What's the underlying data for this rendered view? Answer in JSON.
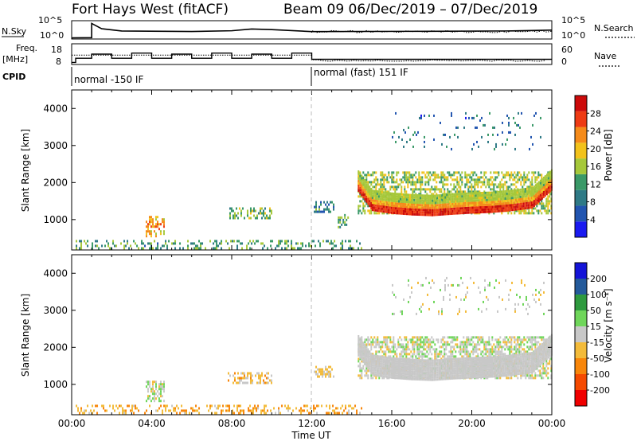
{
  "header": {
    "station": "Fort Hays West (fitACF)",
    "beam_info": "Beam 09  06/Dec/2019 – 07/Dec/2019"
  },
  "noise_panel": {
    "left_label": "N.Sky",
    "right_label": "N.Search",
    "left_ticks": [
      "10^5",
      "10^0"
    ],
    "right_ticks": [
      "10^5",
      "10^0"
    ]
  },
  "freq_panel": {
    "left_label_1": "Freq.",
    "left_label_2": "[MHz]",
    "right_label": "Nave",
    "left_ticks": [
      "18",
      "8"
    ],
    "right_ticks": [
      "60",
      "0"
    ]
  },
  "cpid": {
    "label": "CPID",
    "segments": [
      "normal -150 IF",
      "normal (fast) 151 IF"
    ]
  },
  "colors": {
    "power_scale": [
      "#1a1af0",
      "#2255b0",
      "#2f7a86",
      "#3a9968",
      "#a6c83a",
      "#f2c21b",
      "#f58b1a",
      "#ee3b14",
      "#cc0a0a"
    ],
    "velocity_scale": [
      "#f00000",
      "#f54a00",
      "#f8860a",
      "#f3bb3a",
      "#c8c8c8",
      "#6fd65a",
      "#2e9a3e",
      "#245a9b",
      "#1414d8"
    ]
  },
  "chart_data": [
    {
      "type": "heatmap",
      "title": "Power",
      "ylabel": "Slant Range [km]",
      "xlabel": "Time UT",
      "ylim": [
        180,
        4500
      ],
      "y_ticks": [
        "4000",
        "3000",
        "2000",
        "1000"
      ],
      "x_ticks": [
        "00:00",
        "04:00",
        "08:00",
        "12:00",
        "16:00",
        "20:00",
        "00:00"
      ],
      "colorbar": {
        "label": "Power [dB]",
        "ticks": [
          "28",
          "24",
          "20",
          "16",
          "12",
          "8",
          "4"
        ],
        "range": [
          0,
          32
        ]
      },
      "scatter_regions": [
        {
          "t0": 0.2,
          "t1": 14.5,
          "r0": 250,
          "r1": 450,
          "level": 12
        },
        {
          "t0": 3.7,
          "t1": 4.6,
          "r0": 550,
          "r1": 1100,
          "level": 22
        },
        {
          "t0": 7.8,
          "t1": 10.0,
          "r0": 1050,
          "r1": 1330,
          "level": 14
        },
        {
          "t0": 12.1,
          "t1": 13.1,
          "r0": 1200,
          "r1": 1500,
          "level": 10
        },
        {
          "t0": 13.3,
          "t1": 13.8,
          "r0": 800,
          "r1": 1150,
          "level": 14
        },
        {
          "t0": 14.3,
          "t1": 24.0,
          "r0": 1150,
          "r1": 2300,
          "level": 16
        },
        {
          "t0": 16.0,
          "t1": 23.6,
          "r0": 2900,
          "r1": 3900,
          "level": 8
        }
      ],
      "main_echo": {
        "t": [
          14.3,
          15.0,
          16.0,
          17.0,
          18.0,
          19.0,
          20.0,
          21.0,
          22.0,
          23.0,
          24.0
        ],
        "r": [
          1900,
          1380,
          1300,
          1260,
          1240,
          1280,
          1310,
          1330,
          1380,
          1450,
          1950
        ]
      }
    },
    {
      "type": "heatmap",
      "title": "Velocity",
      "ylabel": "Slant Range [km]",
      "xlabel": "Time UT",
      "ylim": [
        180,
        4500
      ],
      "y_ticks": [
        "4000",
        "3000",
        "2000",
        "1000"
      ],
      "x_ticks": [
        "00:00",
        "04:00",
        "08:00",
        "12:00",
        "16:00",
        "20:00",
        "00:00"
      ],
      "colorbar": {
        "label": "Velocity [m s⁻¹]",
        "ticks": [
          "200",
          "100",
          "50",
          "15",
          "-15",
          "-50",
          "-100",
          "-200"
        ],
        "range": [
          -250,
          250
        ]
      },
      "scatter_regions": [
        {
          "t0": 0.2,
          "t1": 14.5,
          "r0": 250,
          "r1": 450,
          "velocity": -40
        },
        {
          "t0": 3.7,
          "t1": 4.6,
          "r0": 550,
          "r1": 1100,
          "velocity": 0
        },
        {
          "t0": 7.8,
          "t1": 10.0,
          "r0": 1050,
          "r1": 1330,
          "velocity": -30
        },
        {
          "t0": 12.1,
          "t1": 13.1,
          "r0": 1200,
          "r1": 1500,
          "velocity": -20
        },
        {
          "t0": 14.3,
          "t1": 24.0,
          "r0": 1150,
          "r1": 2300,
          "velocity": 0
        },
        {
          "t0": 16.0,
          "t1": 23.6,
          "r0": 2900,
          "r1": 3900,
          "velocity": 0
        }
      ]
    }
  ]
}
